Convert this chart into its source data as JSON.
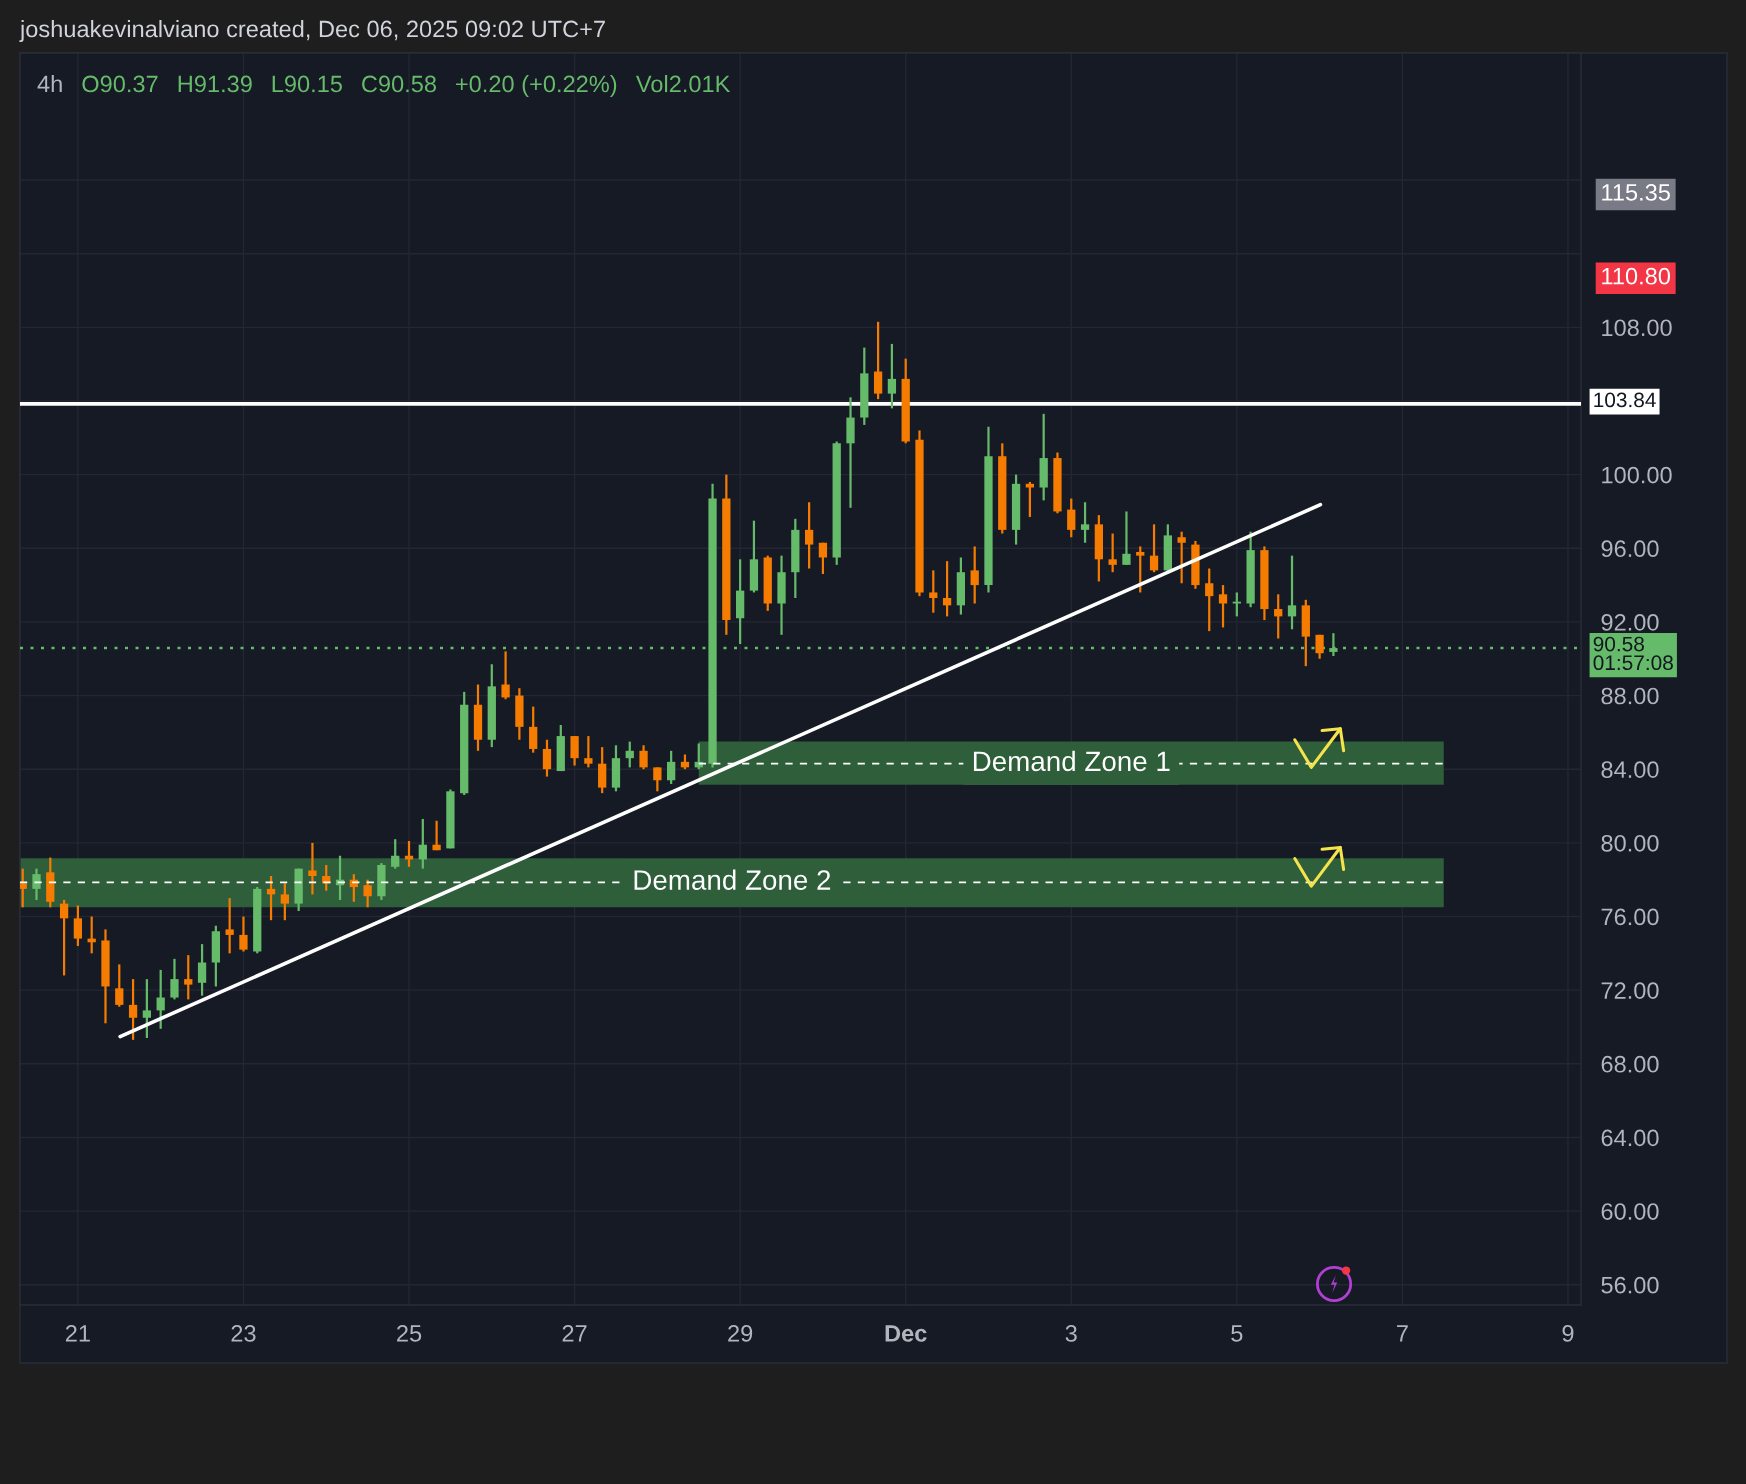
{
  "chart_data": {
    "type": "candlestick",
    "title": "4h",
    "annotations": [
      "joshuakevinalviano created, Dec 06, 2025 09:02 UTC+7",
      "O90.37",
      "H91.39",
      "L90.15",
      "C90.58",
      "+0.20 (+0.22%)",
      "Vol2.01K"
    ],
    "series": [
      {
        "x": [
          "2025-11-20T11:00",
          "2025-11-20T15:00",
          "2025-11-20T19:00",
          "2025-11-20T23:00",
          "2025-11-21T03:00",
          "2025-11-21T07:00",
          "2025-11-21T11:00",
          "2025-11-21T15:00",
          "2025-11-21T19:00",
          "2025-11-21T23:00",
          "2025-11-22T03:00",
          "2025-11-22T07:00",
          "2025-11-22T11:00",
          "2025-11-22T15:00",
          "2025-11-22T19:00",
          "2025-11-22T23:00",
          "2025-11-23T03:00",
          "2025-11-23T07:00",
          "2025-11-23T11:00",
          "2025-11-23T15:00",
          "2025-11-23T19:00",
          "2025-11-23T23:00",
          "2025-11-24T03:00",
          "2025-11-24T07:00",
          "2025-11-24T11:00",
          "2025-11-24T15:00",
          "2025-11-24T19:00",
          "2025-11-24T23:00",
          "2025-11-25T03:00",
          "2025-11-25T07:00",
          "2025-11-25T11:00",
          "2025-11-25T15:00",
          "2025-11-25T19:00",
          "2025-11-25T23:00",
          "2025-11-26T03:00",
          "2025-11-26T07:00",
          "2025-11-26T11:00",
          "2025-11-26T15:00",
          "2025-11-26T19:00",
          "2025-11-26T23:00",
          "2025-11-27T03:00",
          "2025-11-27T07:00",
          "2025-11-27T11:00",
          "2025-11-27T15:00",
          "2025-11-27T19:00",
          "2025-11-27T23:00",
          "2025-11-28T03:00",
          "2025-11-28T07:00",
          "2025-11-28T11:00",
          "2025-11-28T15:00",
          "2025-11-28T19:00",
          "2025-11-28T23:00",
          "2025-11-29T03:00",
          "2025-11-29T07:00",
          "2025-11-29T11:00",
          "2025-11-29T15:00",
          "2025-11-29T19:00",
          "2025-11-29T23:00",
          "2025-11-30T03:00",
          "2025-11-30T07:00",
          "2025-11-30T11:00",
          "2025-11-30T15:00",
          "2025-11-30T19:00",
          "2025-11-30T23:00",
          "2025-12-01T03:00",
          "2025-12-01T07:00",
          "2025-12-01T11:00",
          "2025-12-01T15:00",
          "2025-12-01T19:00",
          "2025-12-01T23:00",
          "2025-12-02T03:00",
          "2025-12-02T07:00",
          "2025-12-02T11:00",
          "2025-12-02T15:00",
          "2025-12-02T19:00",
          "2025-12-02T23:00",
          "2025-12-03T03:00",
          "2025-12-03T07:00",
          "2025-12-03T11:00",
          "2025-12-03T15:00",
          "2025-12-03T19:00",
          "2025-12-03T23:00",
          "2025-12-04T03:00",
          "2025-12-04T07:00",
          "2025-12-04T11:00",
          "2025-12-04T15:00",
          "2025-12-04T19:00",
          "2025-12-04T23:00",
          "2025-12-05T03:00",
          "2025-12-05T07:00",
          "2025-12-05T11:00",
          "2025-12-05T15:00",
          "2025-12-05T19:00",
          "2025-12-05T23:00",
          "2025-12-06T03:00",
          "2025-12-06T07:00"
        ],
        "ohlc": [
          [
            77.8,
            78.6,
            76.5,
            77.5
          ],
          [
            77.5,
            78.6,
            76.9,
            78.3
          ],
          [
            78.4,
            79.2,
            76.5,
            76.8
          ],
          [
            76.7,
            76.9,
            72.8,
            75.9
          ],
          [
            75.9,
            76.6,
            74.4,
            74.8
          ],
          [
            74.8,
            76.0,
            74.0,
            74.6
          ],
          [
            74.7,
            75.3,
            70.2,
            72.2
          ],
          [
            72.1,
            73.4,
            71.1,
            71.2
          ],
          [
            71.2,
            72.6,
            69.3,
            70.5
          ],
          [
            70.5,
            72.6,
            69.4,
            70.9
          ],
          [
            70.9,
            73.1,
            69.9,
            71.6
          ],
          [
            71.6,
            73.7,
            71.5,
            72.6
          ],
          [
            72.6,
            73.9,
            71.5,
            72.3
          ],
          [
            72.4,
            74.5,
            71.7,
            73.5
          ],
          [
            73.5,
            75.5,
            72.2,
            75.2
          ],
          [
            75.3,
            77.0,
            74.0,
            75.0
          ],
          [
            75.0,
            76.0,
            74.1,
            74.2
          ],
          [
            74.1,
            77.6,
            74.0,
            77.5
          ],
          [
            77.5,
            78.2,
            75.8,
            77.2
          ],
          [
            77.2,
            77.8,
            75.8,
            76.7
          ],
          [
            76.7,
            78.6,
            76.3,
            78.6
          ],
          [
            78.5,
            80.0,
            77.2,
            78.2
          ],
          [
            78.2,
            78.8,
            77.4,
            77.8
          ],
          [
            77.7,
            79.3,
            76.9,
            78.0
          ],
          [
            78.0,
            78.3,
            76.8,
            77.6
          ],
          [
            77.7,
            78.0,
            76.5,
            77.1
          ],
          [
            77.1,
            78.9,
            76.9,
            78.8
          ],
          [
            78.7,
            80.2,
            78.6,
            79.3
          ],
          [
            79.3,
            80.1,
            78.7,
            79.1
          ],
          [
            79.1,
            81.3,
            78.6,
            79.9
          ],
          [
            79.9,
            81.2,
            79.6,
            79.6
          ],
          [
            79.7,
            82.9,
            79.7,
            82.8
          ],
          [
            82.7,
            88.2,
            82.6,
            87.5
          ],
          [
            87.5,
            88.6,
            85.0,
            85.6
          ],
          [
            85.6,
            89.7,
            85.2,
            88.5
          ],
          [
            88.6,
            90.4,
            87.8,
            87.9
          ],
          [
            88.0,
            88.4,
            85.6,
            86.3
          ],
          [
            86.3,
            87.4,
            84.9,
            85.1
          ],
          [
            85.1,
            85.6,
            83.6,
            84.0
          ],
          [
            83.9,
            86.4,
            83.9,
            85.8
          ],
          [
            85.8,
            85.8,
            84.2,
            84.6
          ],
          [
            84.6,
            85.8,
            84.1,
            84.3
          ],
          [
            84.3,
            85.2,
            82.7,
            83.0
          ],
          [
            83.0,
            85.3,
            82.8,
            84.6
          ],
          [
            84.6,
            85.5,
            84.1,
            85.0
          ],
          [
            85.0,
            85.3,
            84.0,
            84.1
          ],
          [
            84.1,
            84.1,
            82.8,
            83.4
          ],
          [
            83.4,
            85.0,
            83.2,
            84.4
          ],
          [
            84.4,
            84.8,
            84.0,
            84.1
          ],
          [
            84.1,
            85.4,
            84.0,
            84.4
          ],
          [
            84.3,
            99.5,
            84.1,
            98.7
          ],
          [
            98.7,
            100.0,
            91.3,
            92.1
          ],
          [
            92.2,
            95.4,
            90.8,
            93.7
          ],
          [
            93.7,
            97.5,
            93.6,
            95.4
          ],
          [
            95.5,
            95.6,
            92.6,
            93.0
          ],
          [
            93.0,
            95.6,
            91.3,
            94.7
          ],
          [
            94.7,
            97.6,
            93.3,
            97.0
          ],
          [
            97.0,
            98.5,
            94.9,
            96.2
          ],
          [
            96.3,
            96.3,
            94.6,
            95.5
          ],
          [
            95.5,
            101.8,
            95.1,
            101.7
          ],
          [
            101.7,
            104.2,
            98.2,
            103.1
          ],
          [
            103.1,
            106.9,
            102.7,
            105.5
          ],
          [
            105.6,
            108.3,
            104.1,
            104.4
          ],
          [
            104.4,
            107.1,
            103.6,
            105.2
          ],
          [
            105.2,
            106.3,
            101.7,
            101.8
          ],
          [
            101.9,
            102.4,
            93.4,
            93.6
          ],
          [
            93.6,
            94.8,
            92.5,
            93.3
          ],
          [
            93.3,
            95.3,
            92.3,
            92.9
          ],
          [
            92.9,
            95.5,
            92.4,
            94.7
          ],
          [
            94.8,
            96.1,
            93.0,
            94.0
          ],
          [
            94.0,
            102.6,
            93.6,
            101.0
          ],
          [
            101.0,
            101.7,
            96.8,
            97.0
          ],
          [
            97.0,
            100.0,
            96.2,
            99.5
          ],
          [
            99.5,
            99.6,
            97.7,
            99.3
          ],
          [
            99.3,
            103.3,
            98.6,
            100.9
          ],
          [
            100.9,
            101.2,
            97.9,
            98.0
          ],
          [
            98.1,
            98.7,
            96.6,
            97.0
          ],
          [
            97.0,
            98.5,
            96.3,
            97.3
          ],
          [
            97.3,
            97.8,
            94.2,
            95.4
          ],
          [
            95.4,
            96.8,
            94.7,
            95.1
          ],
          [
            95.1,
            98.0,
            95.1,
            95.7
          ],
          [
            95.8,
            96.1,
            93.6,
            95.6
          ],
          [
            95.6,
            97.3,
            94.7,
            94.8
          ],
          [
            94.8,
            97.3,
            94.7,
            96.7
          ],
          [
            96.6,
            96.9,
            94.1,
            96.3
          ],
          [
            96.2,
            96.4,
            93.8,
            94.0
          ],
          [
            94.1,
            94.9,
            91.5,
            93.4
          ],
          [
            93.5,
            94.0,
            91.7,
            93.0
          ],
          [
            93.0,
            93.6,
            92.3,
            93.1
          ],
          [
            93.0,
            96.9,
            92.8,
            95.9
          ],
          [
            95.9,
            96.1,
            92.1,
            92.7
          ],
          [
            92.7,
            93.5,
            91.1,
            92.3
          ],
          [
            92.3,
            95.6,
            91.6,
            92.9
          ],
          [
            92.9,
            93.2,
            89.6,
            91.2
          ],
          [
            91.3,
            91.3,
            90.0,
            90.3
          ],
          [
            90.37,
            91.39,
            90.15,
            90.58
          ]
        ],
        "colors": [
          "#f57c00",
          "#66bb6a",
          "#f57c00",
          "#f57c00",
          "#f57c00",
          "#f57c00",
          "#f57c00",
          "#f57c00",
          "#f57c00",
          "#66bb6a",
          "#66bb6a",
          "#66bb6a",
          "#f57c00",
          "#66bb6a",
          "#66bb6a",
          "#f57c00",
          "#f57c00",
          "#66bb6a",
          "#f57c00",
          "#f57c00",
          "#66bb6a",
          "#f57c00",
          "#f57c00",
          "#66bb6a",
          "#f57c00",
          "#f57c00",
          "#66bb6a",
          "#66bb6a",
          "#f57c00",
          "#66bb6a",
          "#f57c00",
          "#66bb6a",
          "#66bb6a",
          "#f57c00",
          "#66bb6a",
          "#f57c00",
          "#f57c00",
          "#f57c00",
          "#f57c00",
          "#66bb6a",
          "#f57c00",
          "#f57c00",
          "#f57c00",
          "#66bb6a",
          "#66bb6a",
          "#f57c00",
          "#f57c00",
          "#66bb6a",
          "#f57c00",
          "#66bb6a",
          "#66bb6a",
          "#f57c00",
          "#66bb6a",
          "#66bb6a",
          "#f57c00",
          "#66bb6a",
          "#66bb6a",
          "#f57c00",
          "#f57c00",
          "#66bb6a",
          "#66bb6a",
          "#66bb6a",
          "#f57c00",
          "#66bb6a",
          "#f57c00",
          "#f57c00",
          "#f57c00",
          "#f57c00",
          "#66bb6a",
          "#f57c00",
          "#66bb6a",
          "#f57c00",
          "#66bb6a",
          "#f57c00",
          "#66bb6a",
          "#f57c00",
          "#f57c00",
          "#66bb6a",
          "#f57c00",
          "#f57c00",
          "#66bb6a",
          "#f57c00",
          "#f57c00",
          "#66bb6a",
          "#f57c00",
          "#f57c00",
          "#f57c00",
          "#f57c00",
          "#66bb6a",
          "#66bb6a",
          "#f57c00",
          "#f57c00",
          "#66bb6a",
          "#f57c00",
          "#f57c00",
          "#66bb6a"
        ]
      },
      {
        "type": "line",
        "x": [
          "2025-11-21T15:15",
          "2025-12-06T03:15"
        ],
        "values": [
          69.48,
          98.37
        ],
        "color": "#ffffff"
      },
      {
        "type": "line",
        "name": "Demand Zone 1",
        "x": [
          "2025-11-28T15:00",
          "2025-12-07T15:00"
        ],
        "values": [
          84.3,
          84.3
        ],
        "lower": [
          83.15,
          83.15
        ],
        "upper": [
          85.5,
          85.5
        ],
        "color": "#ffffff",
        "line_style": "dashed"
      },
      {
        "type": "line",
        "name": "Demand Zone 2",
        "x": [
          "2025-11-20T10:13",
          "2025-12-07T15:00"
        ],
        "values": [
          77.85,
          77.85
        ],
        "lower": [
          76.5,
          76.5
        ],
        "upper": [
          79.17,
          79.17
        ],
        "color": "#ffffff",
        "line_style": "dashed"
      }
    ],
    "ref_lines": [
      {
        "axis": "y",
        "value": 103.84,
        "label": "103.84",
        "color": "#ffffff",
        "line_style": "solid"
      },
      {
        "axis": "y",
        "value": 90.58,
        "label": "90.58\n01:57:08",
        "color": "#66bb6a",
        "line_style": "dotted"
      }
    ],
    "xlim": [
      "2025-11-20T10:13",
      "2025-12-09T06:47"
    ],
    "xticks": [
      {
        "value": "2025-11-21T03:00",
        "label": "21"
      },
      {
        "value": "2025-11-23T03:00",
        "label": "23"
      },
      {
        "value": "2025-11-25T03:00",
        "label": "25"
      },
      {
        "value": "2025-11-27T03:00",
        "label": "27"
      },
      {
        "value": "2025-11-29T03:00",
        "label": "29"
      },
      {
        "value": "2025-12-01T03:00",
        "label": "Dec"
      },
      {
        "value": "2025-12-03T03:00",
        "label": "3"
      },
      {
        "value": "2025-12-05T03:00",
        "label": "5"
      },
      {
        "value": "2025-12-07T03:00",
        "label": "7"
      },
      {
        "value": "2025-12-09T03:00",
        "label": "9"
      }
    ],
    "ylim": [
      54.9,
      122.9
    ],
    "yticks": [
      {
        "value": 56,
        "label": "56.00"
      },
      {
        "value": 60,
        "label": "60.00"
      },
      {
        "value": 64,
        "label": "64.00"
      },
      {
        "value": 68,
        "label": "68.00"
      },
      {
        "value": 72,
        "label": "72.00"
      },
      {
        "value": 76,
        "label": "76.00"
      },
      {
        "value": 80,
        "label": "80.00"
      },
      {
        "value": 84,
        "label": "84.00"
      },
      {
        "value": 88,
        "label": "88.00"
      },
      {
        "value": 92,
        "label": "92.00"
      },
      {
        "value": 96,
        "label": "96.00"
      },
      {
        "value": 100,
        "label": "100.00"
      },
      {
        "value": 104,
        "label": null
      },
      {
        "value": 108,
        "label": "108.00"
      },
      {
        "value": 112,
        "label": null
      },
      {
        "value": 116,
        "label": null
      }
    ],
    "y2lim": [
      54.9,
      122.9
    ],
    "y2ticks": [
      {
        "value": 115.35,
        "label": "115.35"
      },
      {
        "value": 110.8,
        "label": "110.80"
      }
    ],
    "grid": true
  }
}
